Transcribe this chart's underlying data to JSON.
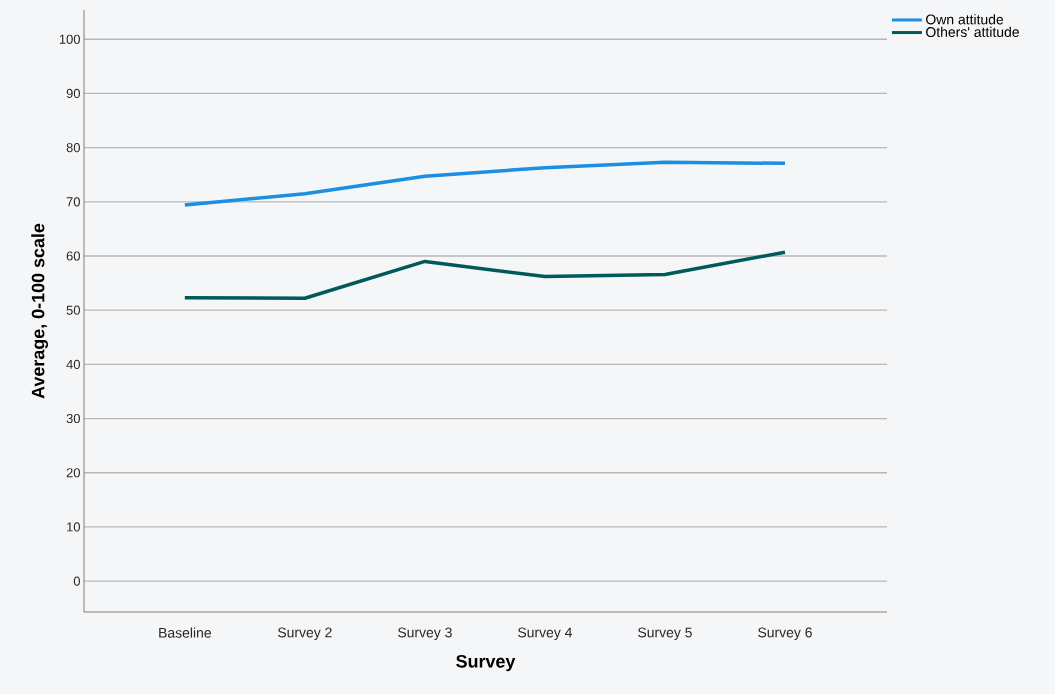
{
  "chart_data": {
    "type": "line",
    "xlabel": "Survey",
    "ylabel": "Average, 0-100 scale",
    "categories": [
      "Baseline",
      "Survey 2",
      "Survey 3",
      "Survey 4",
      "Survey 5",
      "Survey 6"
    ],
    "series": [
      {
        "name": "Own attitude",
        "color": "#1a8fe3",
        "values": [
          69.4,
          71.5,
          74.7,
          76.3,
          77.3,
          77.1
        ]
      },
      {
        "name": "Others' attitude",
        "color": "#005a5a",
        "values": [
          52.3,
          52.2,
          59.0,
          56.2,
          56.6,
          60.7
        ]
      }
    ],
    "ylim": [
      -5.7,
      105.4
    ],
    "yticks": [
      0,
      10,
      20,
      30,
      40,
      50,
      60,
      70,
      80,
      90,
      100
    ],
    "grid": "y",
    "legend": "top right",
    "marker": "none",
    "line_style": "solid"
  }
}
